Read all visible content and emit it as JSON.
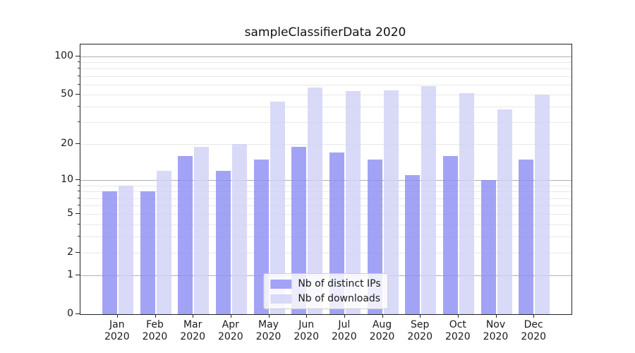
{
  "title": "sampleClassifierData 2020",
  "chart_data": {
    "type": "bar",
    "title": "sampleClassifierData 2020",
    "categories": [
      "Jan 2020",
      "Feb 2020",
      "Mar 2020",
      "Apr 2020",
      "May 2020",
      "Jun 2020",
      "Jul 2020",
      "Aug 2020",
      "Sep 2020",
      "Oct 2020",
      "Nov 2020",
      "Dec 2020"
    ],
    "series": [
      {
        "name": "Nb of distinct IPs",
        "color": "#8c8cf4",
        "opacity": 0.8,
        "values": [
          8,
          8,
          16,
          12,
          15,
          19,
          17,
          15,
          11,
          16,
          10,
          15
        ]
      },
      {
        "name": "Nb of downloads",
        "color": "#cfcff6",
        "opacity": 0.8,
        "values": [
          9,
          12,
          19,
          20,
          44,
          57,
          53,
          54,
          58,
          51,
          38,
          50
        ]
      }
    ],
    "xlabel": "",
    "ylabel": "",
    "yscale": "log1p",
    "ylim": [
      0,
      124
    ],
    "yticks": [
      0,
      1,
      2,
      5,
      10,
      20,
      50,
      100
    ],
    "major_gridlines": [
      1,
      10,
      100
    ],
    "minor_gridlines": [
      2,
      3,
      4,
      5,
      6,
      7,
      8,
      9,
      20,
      30,
      40,
      50,
      60,
      70,
      80,
      90
    ],
    "grid": true,
    "legend_position": "lower center",
    "colors": {
      "major_grid": "#b0b0b0",
      "minor_grid": "#e8e8e8",
      "spine": "#222222",
      "text": "#1a1a1a",
      "background": "#ffffff"
    }
  }
}
